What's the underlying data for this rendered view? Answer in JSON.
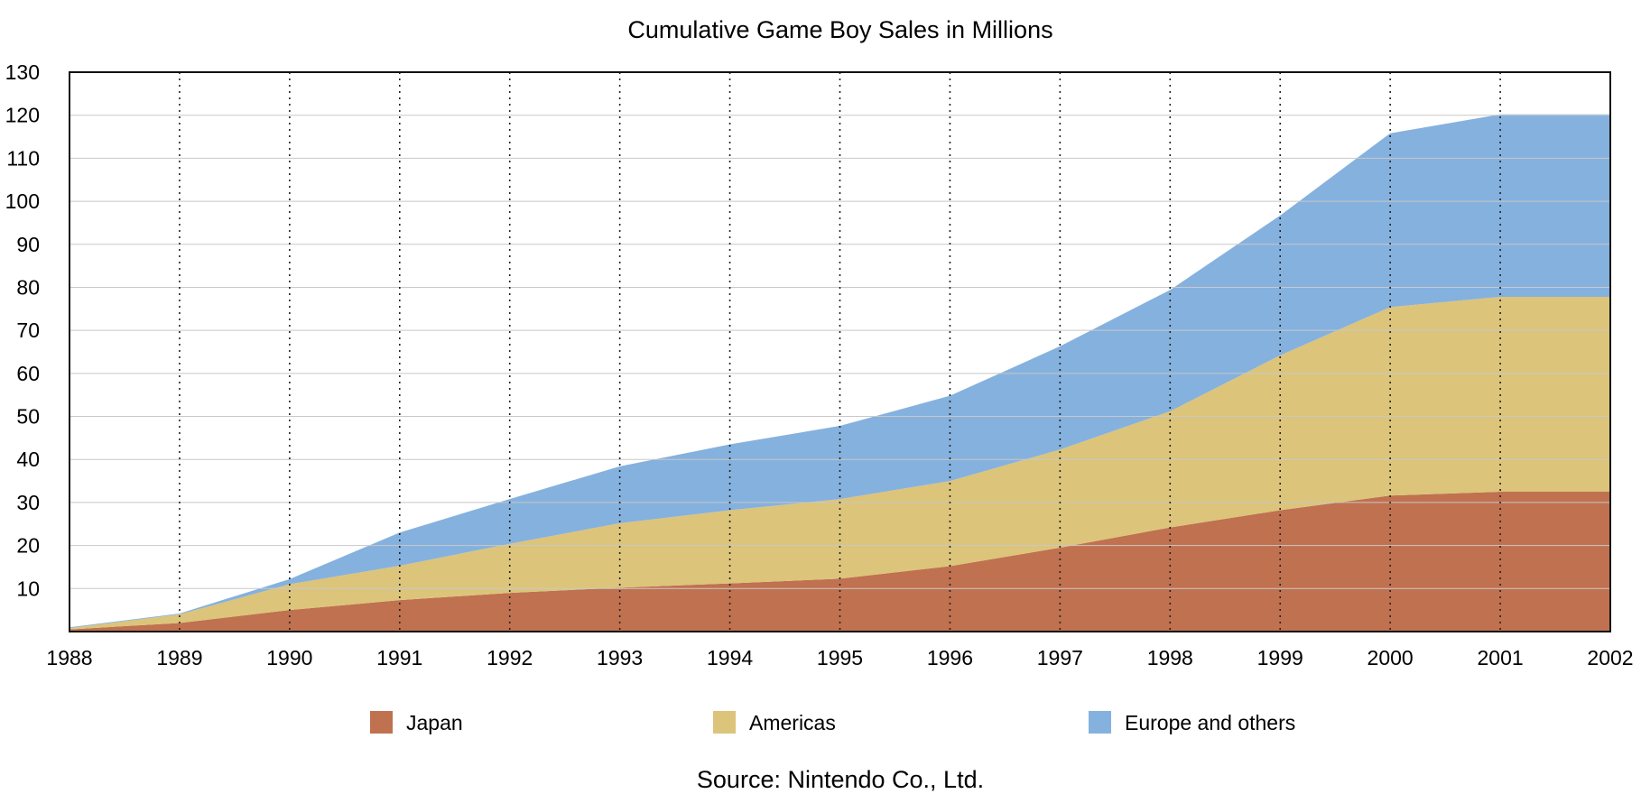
{
  "chart_data": {
    "type": "area",
    "stacked": true,
    "title": "Cumulative Game Boy Sales in Millions",
    "source": "Source: Nintendo Co., Ltd.",
    "x": [
      1988,
      1989,
      1990,
      1991,
      1992,
      1993,
      1994,
      1995,
      1996,
      1997,
      1998,
      1999,
      2000,
      2001,
      2002
    ],
    "x_tick_labels": [
      "1988",
      "1989",
      "1990",
      "1991",
      "1992",
      "1993",
      "1994",
      "1995",
      "1996",
      "1997",
      "1998",
      "1999",
      "2000",
      "2001",
      "2002"
    ],
    "y_ticks": [
      10,
      20,
      30,
      40,
      50,
      60,
      70,
      80,
      90,
      100,
      110,
      120,
      130
    ],
    "y_tick_labels": [
      "10",
      "20",
      "30",
      "40",
      "50",
      "60",
      "70",
      "80",
      "90",
      "100",
      "110",
      "120",
      "130"
    ],
    "ylim": [
      0,
      130
    ],
    "xlim": [
      1988,
      2002
    ],
    "grid": true,
    "legend_position": "bottom",
    "series": [
      {
        "name": "Japan",
        "color": "#c0714f",
        "values": [
          0.5,
          2,
          5,
          7.3,
          9,
          10.2,
          11.2,
          12.3,
          15.2,
          19.5,
          24.2,
          28.2,
          31.6,
          32.5,
          32.5
        ]
      },
      {
        "name": "Americas",
        "color": "#dcc47a",
        "values": [
          0.3,
          2,
          6,
          8,
          11.4,
          15,
          17,
          18.5,
          19.8,
          22.8,
          27,
          36,
          43.8,
          45.3,
          45.3
        ]
      },
      {
        "name": "Europe and others",
        "color": "#85b1de",
        "values": [
          0.2,
          0.2,
          1.2,
          7.7,
          10.4,
          13.2,
          15.3,
          17,
          19.8,
          24,
          28.2,
          32.5,
          40.4,
          42.4,
          42.4
        ]
      }
    ]
  }
}
